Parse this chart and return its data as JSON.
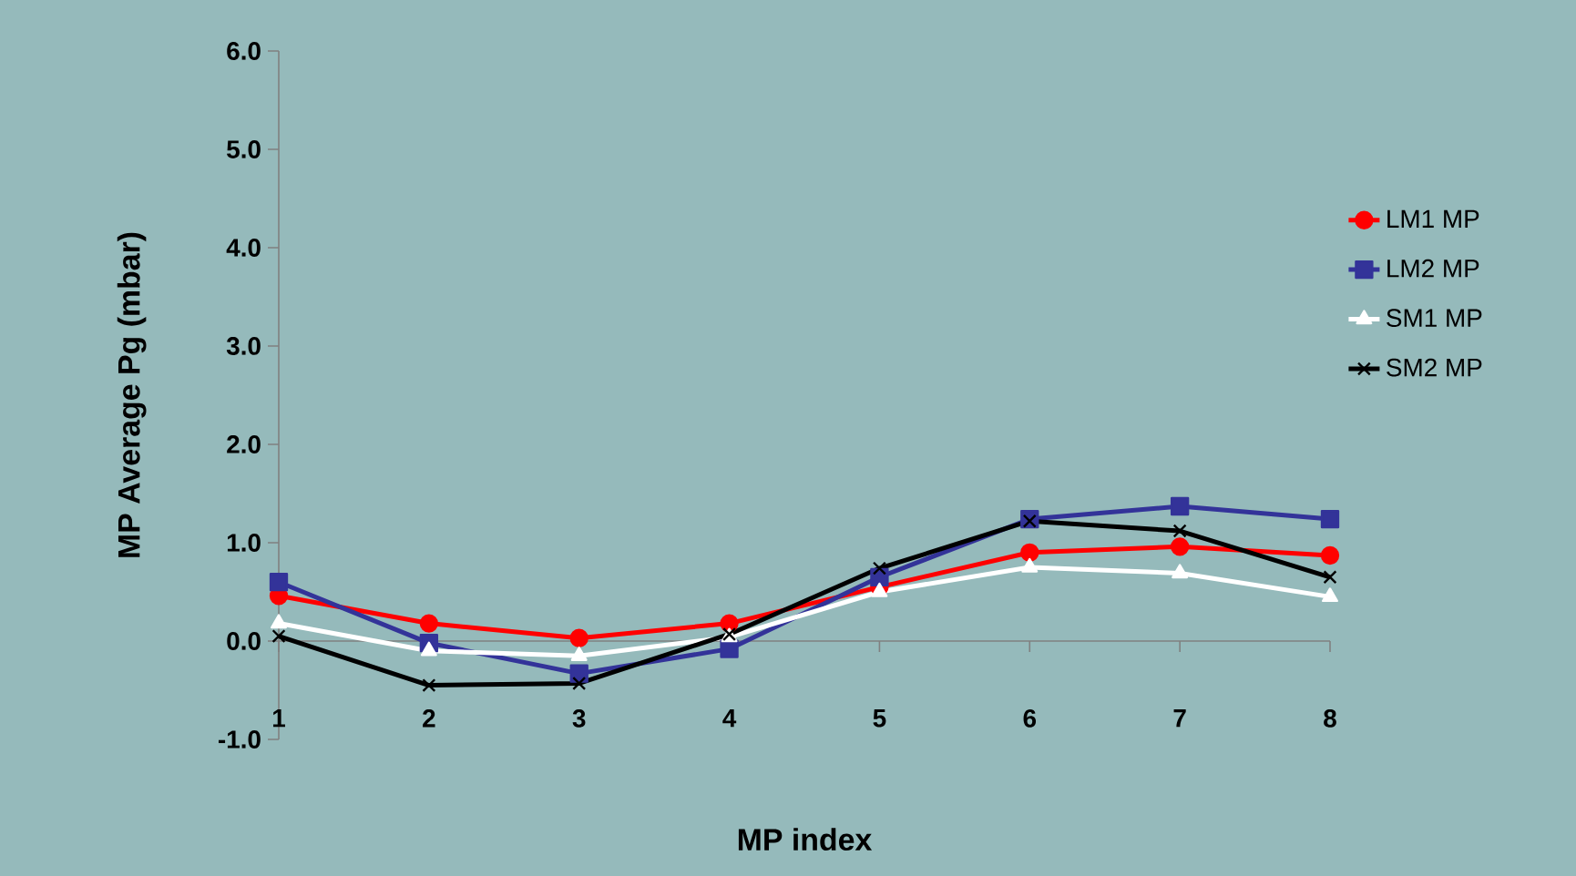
{
  "chart_data": {
    "type": "line",
    "xlabel": "MP index",
    "ylabel": "MP Average Pg (mbar)",
    "categories": [
      "1",
      "2",
      "3",
      "4",
      "5",
      "6",
      "7",
      "8"
    ],
    "series": [
      {
        "name": "LM1 MP",
        "color": "#ff0000",
        "marker": "circle",
        "values": [
          0.46,
          0.18,
          0.03,
          0.18,
          0.55,
          0.9,
          0.96,
          0.87
        ]
      },
      {
        "name": "LM2 MP",
        "color": "#333399",
        "marker": "square",
        "values": [
          0.6,
          -0.02,
          -0.33,
          -0.08,
          0.65,
          1.24,
          1.37,
          1.24
        ]
      },
      {
        "name": "SM1 MP",
        "color": "#ffffff",
        "marker": "triangle",
        "values": [
          0.18,
          -0.1,
          -0.15,
          0.04,
          0.5,
          0.75,
          0.69,
          0.45
        ]
      },
      {
        "name": "SM2 MP",
        "color": "#000000",
        "marker": "cross",
        "values": [
          0.05,
          -0.45,
          -0.43,
          0.07,
          0.74,
          1.22,
          1.12,
          0.65
        ]
      }
    ],
    "ylim": [
      -1,
      6
    ],
    "yticks": [
      {
        "value": -1,
        "label": "-1.0"
      },
      {
        "value": 0,
        "label": "0.0"
      },
      {
        "value": 1,
        "label": "1.0"
      },
      {
        "value": 2,
        "label": "2.0"
      },
      {
        "value": 3,
        "label": "3.0"
      },
      {
        "value": 4,
        "label": "4.0"
      },
      {
        "value": 5,
        "label": "5.0"
      },
      {
        "value": 6,
        "label": "6.0"
      }
    ],
    "legend": "right",
    "line_style": "solid"
  }
}
